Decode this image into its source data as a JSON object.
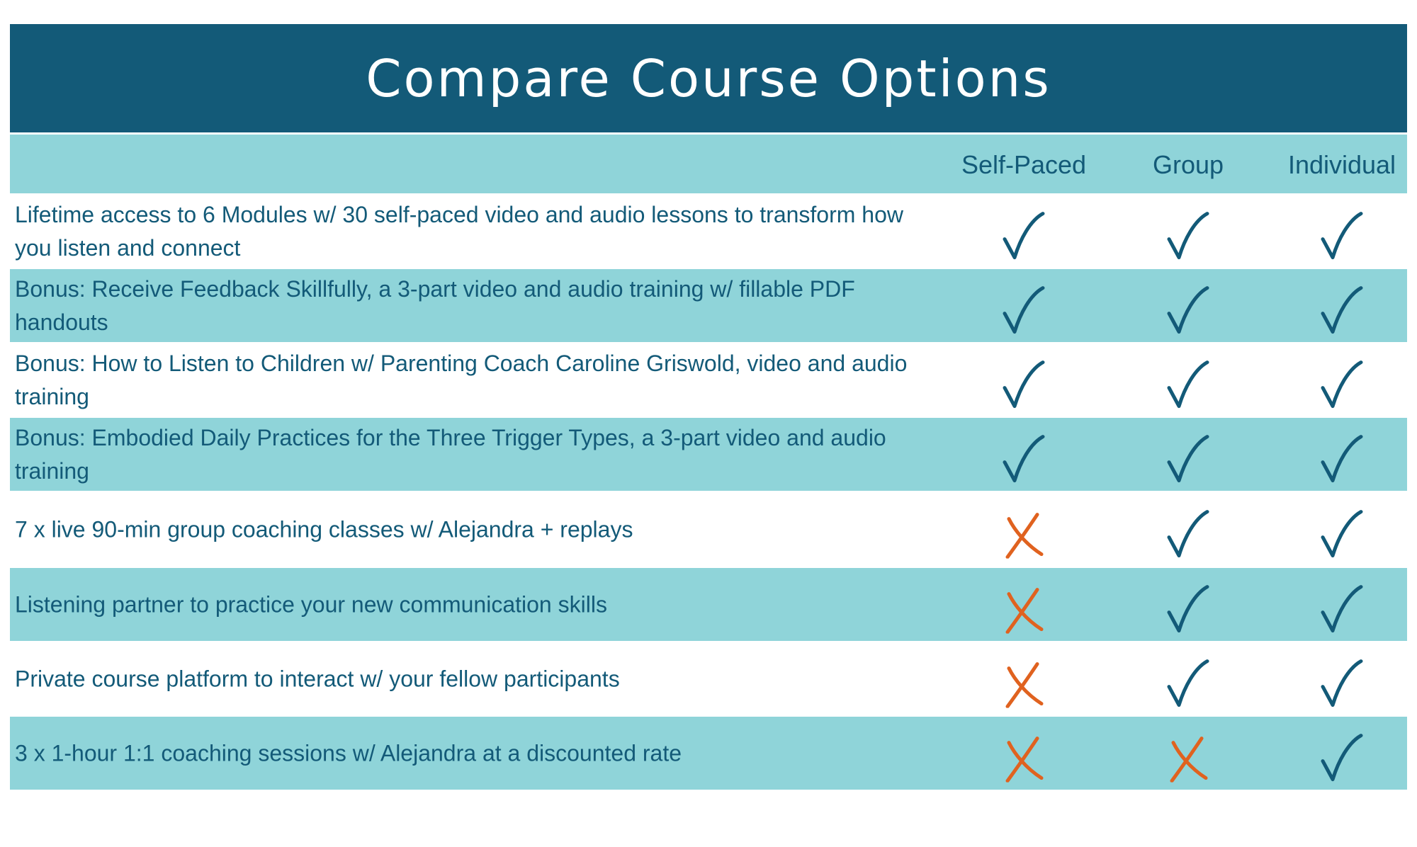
{
  "title": "Compare Course Options",
  "columns": [
    "Self-Paced",
    "Group",
    "Individual"
  ],
  "colors": {
    "header": "#135a78",
    "band": "#8fd4d9",
    "check": "#135a78",
    "cross": "#e0621f"
  },
  "rows": [
    {
      "feature": "Lifetime access to 6 Modules w/ 30 self-paced video and audio lessons to transform how you listen and connect",
      "values": [
        "check",
        "check",
        "check"
      ]
    },
    {
      "feature": "Bonus: Receive Feedback Skillfully, a 3-part video and audio training w/ fillable PDF handouts",
      "values": [
        "check",
        "check",
        "check"
      ]
    },
    {
      "feature": "Bonus: How to Listen to Children w/ Parenting Coach Caroline Griswold, video and audio training",
      "values": [
        "check",
        "check",
        "check"
      ]
    },
    {
      "feature": "Bonus: Embodied Daily Practices for the Three Trigger Types, a 3-part video and audio training",
      "values": [
        "check",
        "check",
        "check"
      ]
    },
    {
      "feature": "7 x live 90-min group coaching classes w/ Alejandra + replays",
      "values": [
        "cross",
        "check",
        "check"
      ]
    },
    {
      "feature": "Listening partner to practice your new communication skills",
      "values": [
        "cross",
        "check",
        "check"
      ]
    },
    {
      "feature": "Private course platform to interact w/ your fellow participants",
      "values": [
        "cross",
        "check",
        "check"
      ]
    },
    {
      "feature": "3 x 1-hour 1:1 coaching sessions w/ Alejandra at a discounted rate",
      "values": [
        "cross",
        "cross",
        "check"
      ]
    }
  ]
}
